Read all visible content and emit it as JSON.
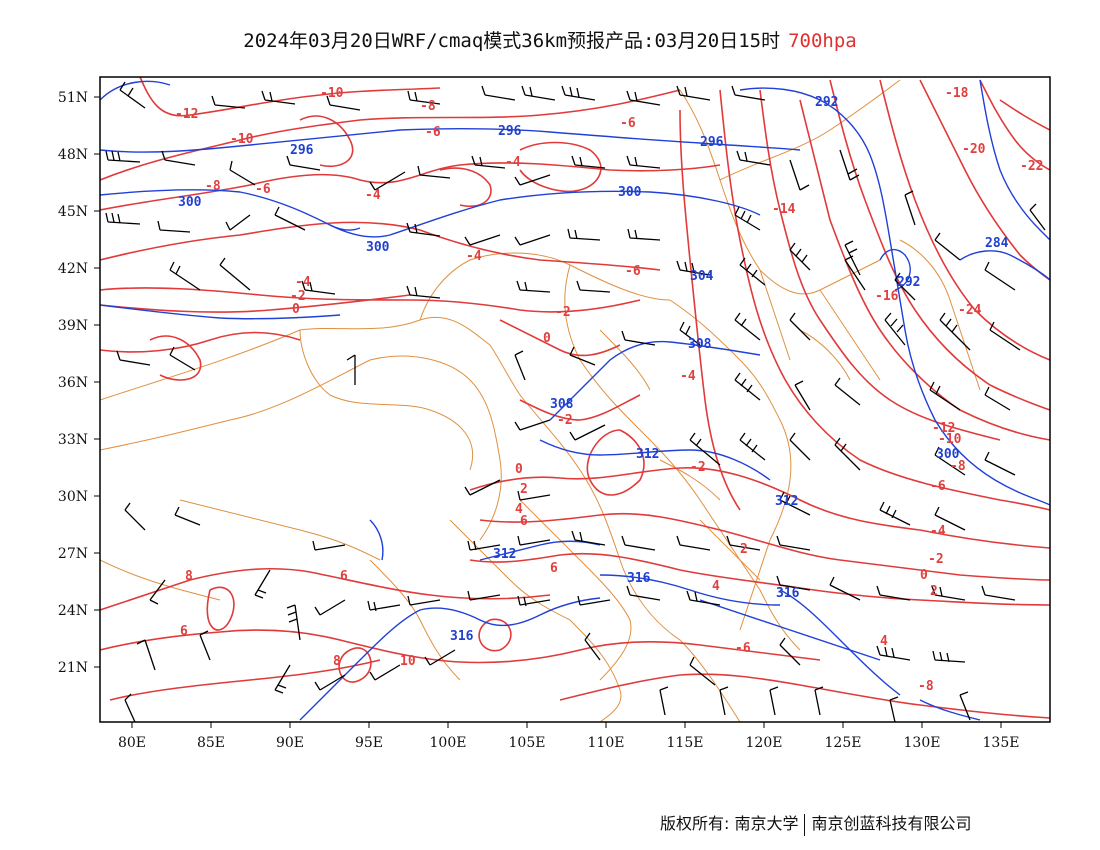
{
  "title": {
    "main": "2024年03月20日WRF/cmaq模式36km预报产品:03月20日15时",
    "level": "700hpa"
  },
  "map": {
    "lat_labels": [
      "51N",
      "48N",
      "45N",
      "42N",
      "39N",
      "36N",
      "33N",
      "30N",
      "27N",
      "24N",
      "21N"
    ],
    "lon_labels": [
      "80E",
      "85E",
      "90E",
      "95E",
      "100E",
      "105E",
      "110E",
      "115E",
      "120E",
      "125E",
      "130E",
      "135E"
    ],
    "temperature_contour_labels": [
      "-12",
      "-10",
      "-10",
      "-8",
      "-8",
      "-6",
      "-6",
      "-6",
      "-4",
      "-4",
      "-4",
      "-4",
      "-2",
      "-2",
      "0",
      "0",
      "-2",
      "-6",
      "-14",
      "-16",
      "-18",
      "-20",
      "-22",
      "-24",
      "-12",
      "-10",
      "-8",
      "-6",
      "-4",
      "-2",
      "0",
      "2",
      "-2",
      "0",
      "2",
      "4",
      "4",
      "6",
      "6",
      "6",
      "6",
      "8",
      "8",
      "10",
      "4",
      "-4",
      "-6",
      "-8",
      "2"
    ],
    "height_contour_labels": [
      "296",
      "296",
      "296",
      "300",
      "300",
      "300",
      "304",
      "308",
      "308",
      "312",
      "312",
      "316",
      "316",
      "316",
      "312",
      "292",
      "292",
      "284",
      "300"
    ],
    "colors": {
      "temperature": "#e03a3a",
      "height": "#2040d8",
      "wind": "#000000",
      "boundary": "#e09040",
      "frame": "#000000"
    }
  },
  "footer": {
    "owner": "版权所有: 南京大学",
    "company": "南京创蓝科技有限公司"
  }
}
